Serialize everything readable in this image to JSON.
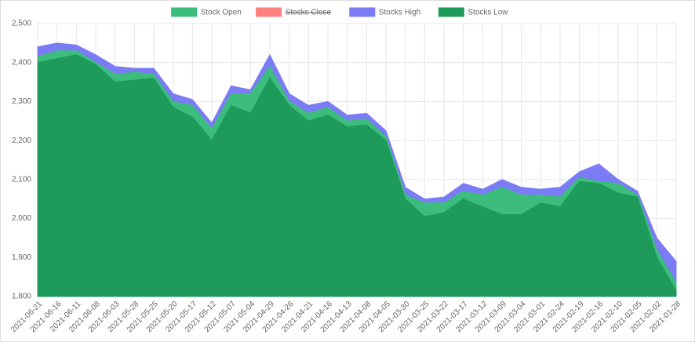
{
  "chart_data": {
    "type": "area",
    "categories": [
      "2021-06-21",
      "2021-06-16",
      "2021-06-11",
      "2021-06-08",
      "2021-06-03",
      "2021-05-28",
      "2021-05-25",
      "2021-05-20",
      "2021-05-17",
      "2021-05-12",
      "2021-05-07",
      "2021-05-04",
      "2021-04-29",
      "2021-04-26",
      "2021-04-21",
      "2021-04-16",
      "2021-04-13",
      "2021-04-08",
      "2021-04-05",
      "2021-03-30",
      "2021-03-25",
      "2021-03-22",
      "2021-03-17",
      "2021-03-12",
      "2021-03-09",
      "2021-03-04",
      "2021-03-01",
      "2021-02-24",
      "2021-02-19",
      "2021-02-16",
      "2021-02-10",
      "2021-02-05",
      "2021-02-02",
      "2021-01-28"
    ],
    "series": [
      {
        "name": "Stock Open",
        "color": "#3dbd7d",
        "values": [
          2415,
          2430,
          2430,
          2400,
          2370,
          2375,
          2370,
          2300,
          2290,
          2230,
          2320,
          2320,
          2390,
          2300,
          2270,
          2285,
          2250,
          2255,
          2210,
          2060,
          2040,
          2040,
          2070,
          2060,
          2080,
          2060,
          2060,
          2055,
          2105,
          2095,
          2090,
          2060,
          1920,
          1835
        ]
      },
      {
        "name": "Stocks Close",
        "color": "#ff8080",
        "hidden": true
      },
      {
        "name": "Stocks High",
        "color": "#7b7bf5",
        "values": [
          2440,
          2450,
          2445,
          2420,
          2390,
          2385,
          2385,
          2320,
          2305,
          2245,
          2340,
          2330,
          2420,
          2320,
          2290,
          2300,
          2265,
          2270,
          2225,
          2080,
          2050,
          2055,
          2090,
          2075,
          2100,
          2080,
          2075,
          2080,
          2120,
          2140,
          2100,
          2070,
          1950,
          1890
        ]
      },
      {
        "name": "Stocks Low",
        "color": "#1e9a5a",
        "values": [
          2400,
          2410,
          2420,
          2395,
          2350,
          2355,
          2360,
          2285,
          2260,
          2200,
          2290,
          2270,
          2360,
          2290,
          2250,
          2265,
          2235,
          2240,
          2200,
          2050,
          2005,
          2015,
          2050,
          2030,
          2010,
          2010,
          2040,
          2030,
          2095,
          2090,
          2065,
          2055,
          1900,
          1815
        ]
      }
    ],
    "ylim": [
      1800,
      2500
    ],
    "yticks": [
      {
        "value": 1800,
        "label": "1,800"
      },
      {
        "value": 1900,
        "label": "1,900"
      },
      {
        "value": 2000,
        "label": "2,000"
      },
      {
        "value": 2100,
        "label": "2,100"
      },
      {
        "value": 2200,
        "label": "2,200"
      },
      {
        "value": 2300,
        "label": "2,300"
      },
      {
        "value": 2400,
        "label": "2,400"
      },
      {
        "value": 2500,
        "label": "2,500"
      }
    ],
    "grid": true,
    "legend": "top"
  }
}
